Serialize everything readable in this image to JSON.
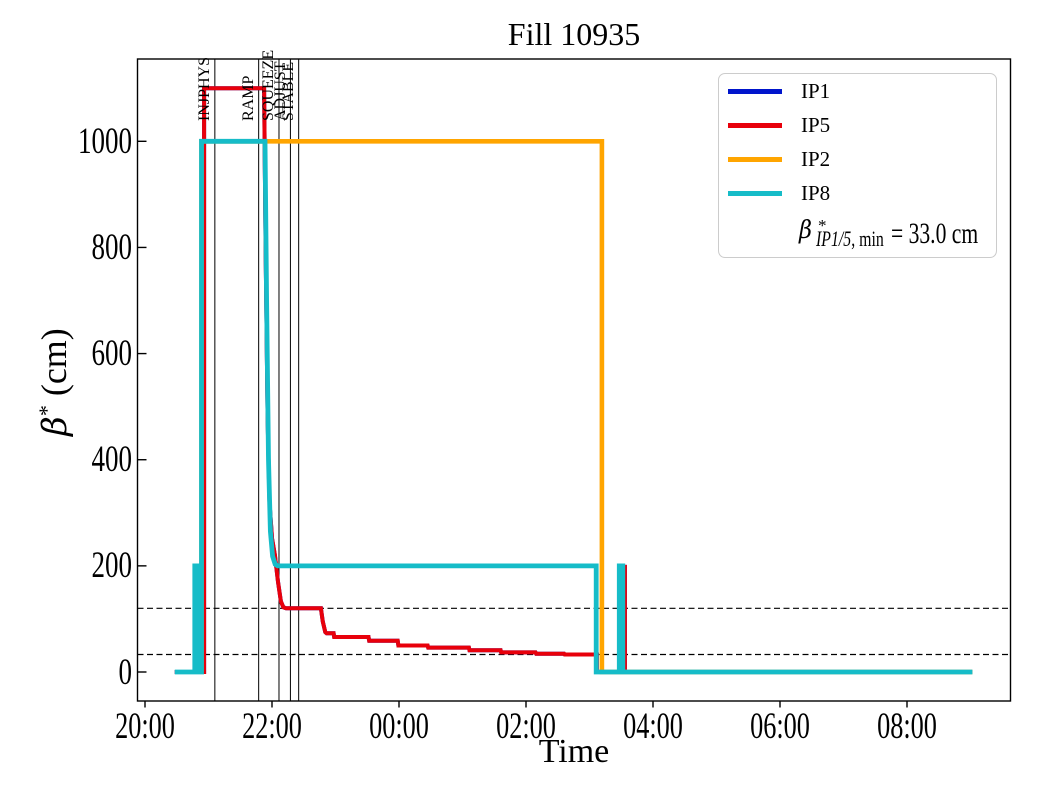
{
  "title": "Fill 10935",
  "xlabel": "Time",
  "ylabel": {
    "beta": "β",
    "sup": "*",
    "rest": " (cm)"
  },
  "legend": {
    "entries": [
      {
        "label": "IP1",
        "color": "#0015cc"
      },
      {
        "label": "IP5",
        "color": "#e8000b"
      },
      {
        "label": "IP2",
        "color": "#ffa500"
      },
      {
        "label": "IP8",
        "color": "#16bcc8"
      }
    ],
    "math": {
      "beta": "β",
      "sup": "*",
      "sub_italic": "IP1/5",
      "sub_rest": ", min",
      "eq": "= 33.0 cm"
    }
  },
  "chart_data": {
    "type": "line",
    "title": "Fill 10935",
    "xlabel": "Time",
    "ylabel": "β* (cm)",
    "x_unit": "hours (time of day, HH:MM)",
    "xlim": [
      19.88,
      33.63
    ],
    "ylim": [
      -55,
      1155
    ],
    "grid": false,
    "xticks": [
      {
        "t": 20,
        "label": "20:00"
      },
      {
        "t": 22,
        "label": "22:00"
      },
      {
        "t": 24,
        "label": "00:00"
      },
      {
        "t": 26,
        "label": "02:00"
      },
      {
        "t": 28,
        "label": "04:00"
      },
      {
        "t": 30,
        "label": "06:00"
      },
      {
        "t": 32,
        "label": "08:00"
      }
    ],
    "yticks": [
      0,
      200,
      400,
      600,
      800,
      1000
    ],
    "hlines_dashed": [
      120,
      33
    ],
    "phases": [
      {
        "label": "INJPHYS",
        "t": 21.1
      },
      {
        "label": "RAMP",
        "t": 21.79
      },
      {
        "label": "SQUEEZE",
        "t": 22.11
      },
      {
        "label": "ADJUST",
        "t": 22.29
      },
      {
        "label": "STABLE",
        "t": 22.42
      }
    ],
    "annotation": "β*_IP1/5,min = 33.0 cm",
    "series": [
      {
        "name": "IP1",
        "color": "#0015cc",
        "lw": 4,
        "points": [
          [
            20.47,
            0
          ],
          [
            20.93,
            0
          ],
          [
            20.93,
            1100
          ],
          [
            21.875,
            1100
          ],
          [
            21.9,
            800
          ],
          [
            21.93,
            480
          ],
          [
            21.96,
            320
          ],
          [
            22.0,
            252
          ],
          [
            22.045,
            220
          ],
          [
            22.095,
            170
          ],
          [
            22.14,
            133
          ],
          [
            22.18,
            122
          ],
          [
            22.22,
            120
          ],
          [
            22.77,
            120
          ],
          [
            22.8,
            95
          ],
          [
            22.84,
            75
          ],
          [
            22.86,
            73
          ],
          [
            22.97,
            73
          ],
          [
            22.98,
            66
          ],
          [
            23.52,
            66
          ],
          [
            23.53,
            59
          ],
          [
            23.98,
            59
          ],
          [
            23.99,
            50
          ],
          [
            24.45,
            50
          ],
          [
            24.46,
            46
          ],
          [
            25.1,
            46
          ],
          [
            25.11,
            41
          ],
          [
            25.6,
            41
          ],
          [
            25.61,
            37
          ],
          [
            26.15,
            37
          ],
          [
            26.16,
            34.5
          ],
          [
            26.6,
            34.5
          ],
          [
            26.61,
            33
          ],
          [
            27.115,
            33
          ],
          [
            27.115,
            0
          ],
          [
            27.552,
            0
          ],
          [
            27.552,
            198
          ],
          [
            27.558,
            198
          ],
          [
            27.558,
            0
          ],
          [
            33.03,
            0
          ]
        ]
      },
      {
        "name": "IP5",
        "color": "#e8000b",
        "lw": 4,
        "points": [
          [
            20.47,
            0
          ],
          [
            20.93,
            0
          ],
          [
            20.93,
            1100
          ],
          [
            21.875,
            1100
          ],
          [
            21.9,
            800
          ],
          [
            21.93,
            480
          ],
          [
            21.96,
            320
          ],
          [
            22.0,
            252
          ],
          [
            22.045,
            220
          ],
          [
            22.095,
            170
          ],
          [
            22.14,
            133
          ],
          [
            22.18,
            122
          ],
          [
            22.22,
            120
          ],
          [
            22.77,
            120
          ],
          [
            22.8,
            95
          ],
          [
            22.84,
            75
          ],
          [
            22.86,
            73
          ],
          [
            22.97,
            73
          ],
          [
            22.98,
            66
          ],
          [
            23.52,
            66
          ],
          [
            23.53,
            59
          ],
          [
            23.98,
            59
          ],
          [
            23.99,
            50
          ],
          [
            24.45,
            50
          ],
          [
            24.46,
            46
          ],
          [
            25.1,
            46
          ],
          [
            25.11,
            41
          ],
          [
            25.6,
            41
          ],
          [
            25.61,
            37
          ],
          [
            26.15,
            37
          ],
          [
            26.16,
            34.5
          ],
          [
            26.6,
            34.5
          ],
          [
            26.61,
            33
          ],
          [
            27.115,
            33
          ],
          [
            27.115,
            0
          ],
          [
            27.552,
            0
          ],
          [
            27.552,
            198
          ],
          [
            27.558,
            198
          ],
          [
            27.558,
            0
          ],
          [
            33.03,
            0
          ]
        ]
      },
      {
        "name": "IP2",
        "color": "#ffa500",
        "lw": 4.6,
        "points": [
          [
            20.89,
            0
          ],
          [
            20.89,
            1000
          ],
          [
            27.195,
            1000
          ],
          [
            27.195,
            0
          ],
          [
            33.03,
            0
          ]
        ]
      },
      {
        "name": "IP8",
        "color": "#16bcc8",
        "lw": 4.8,
        "points": [
          [
            20.47,
            0
          ],
          [
            20.785,
            0
          ],
          [
            20.785,
            200
          ],
          [
            20.825,
            200
          ],
          [
            20.825,
            0
          ],
          [
            20.89,
            0
          ],
          [
            20.89,
            1000
          ],
          [
            21.89,
            1000
          ],
          [
            21.915,
            700
          ],
          [
            21.945,
            400
          ],
          [
            21.975,
            265
          ],
          [
            22.01,
            218
          ],
          [
            22.05,
            203
          ],
          [
            22.09,
            200
          ],
          [
            27.105,
            200
          ],
          [
            27.105,
            0
          ],
          [
            27.47,
            0
          ],
          [
            27.47,
            200
          ],
          [
            27.525,
            200
          ],
          [
            27.525,
            0
          ],
          [
            33.03,
            0
          ]
        ]
      }
    ]
  }
}
